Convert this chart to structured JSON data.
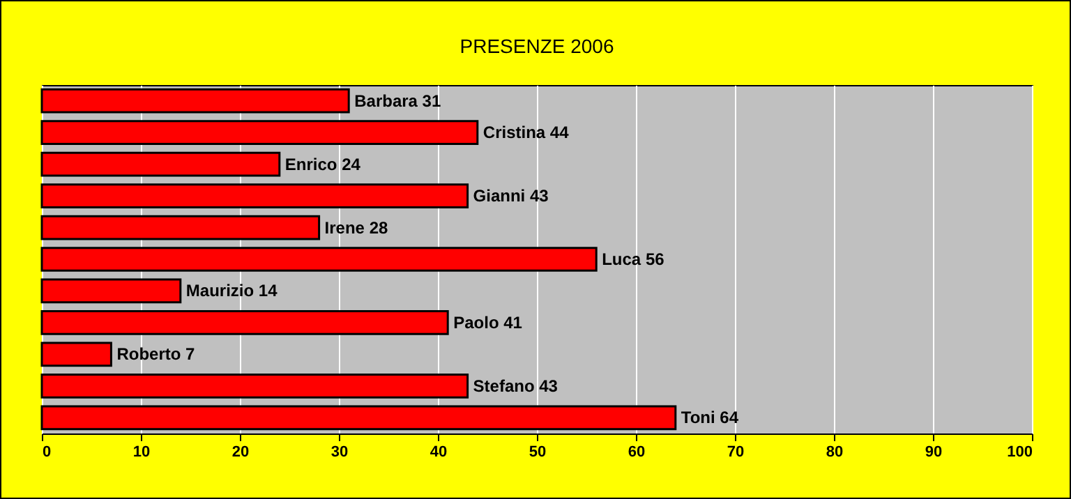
{
  "chart_data": {
    "type": "bar",
    "orientation": "horizontal",
    "title": "PRESENZE 2006",
    "categories": [
      null,
      null,
      null,
      null,
      null,
      null,
      null,
      null,
      null,
      null,
      null
    ],
    "values": [
      31,
      44,
      24,
      43,
      28,
      56,
      14,
      41,
      7,
      43,
      64
    ],
    "value_labels": [
      "Barbara 31",
      "Cristina 44",
      "Enrico 24",
      "Gianni 43",
      "Irene 28",
      "Luca 56",
      "Maurizio 14",
      "Paolo 41",
      "Roberto 7",
      "Stefano 43",
      "Toni 64"
    ],
    "color": "#ff0000",
    "xlim": [
      0,
      100
    ],
    "xticks": [
      0,
      10,
      20,
      30,
      40,
      50,
      60,
      70,
      80,
      90,
      100
    ],
    "grid": "x",
    "tick_labels": "x"
  }
}
